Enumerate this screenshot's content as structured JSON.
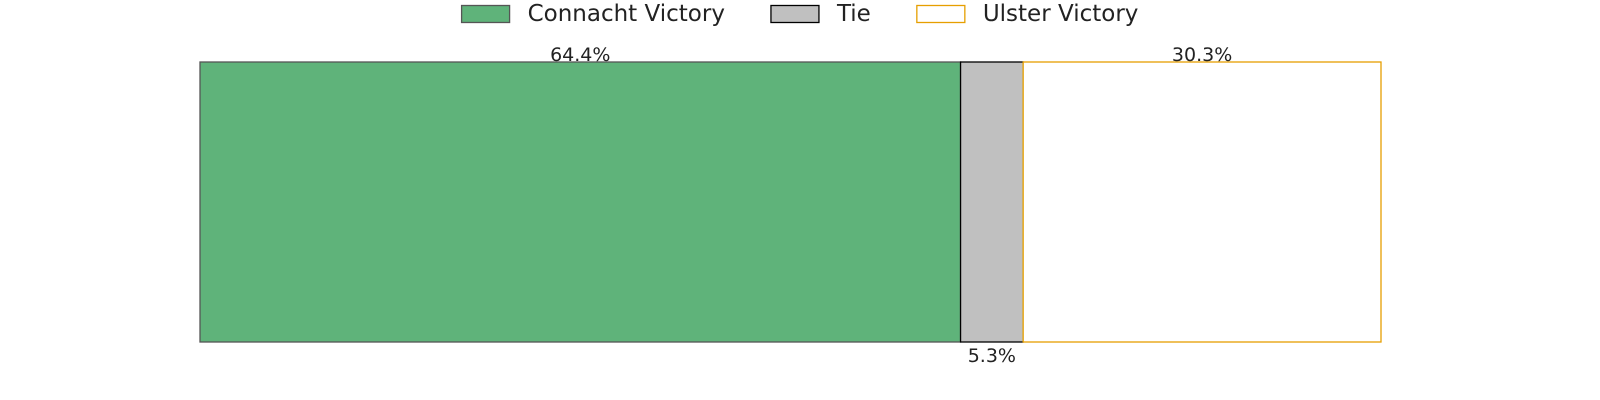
{
  "chart_data": {
    "type": "bar",
    "orientation": "horizontal",
    "stacked": true,
    "categories": [
      ""
    ],
    "series": [
      {
        "name": "Connacht Victory",
        "values": [
          64.4
        ],
        "label": "64.4%",
        "label_position": "top",
        "fill": "#5fb37a",
        "stroke": "#555555"
      },
      {
        "name": "Tie",
        "values": [
          5.3
        ],
        "label": "5.3%",
        "label_position": "bottom",
        "fill": "#c0c0c0",
        "stroke": "#000000"
      },
      {
        "name": "Ulster Victory",
        "values": [
          30.3
        ],
        "label": "30.3%",
        "label_position": "top",
        "fill": "#ffffff",
        "stroke": "#e69f00"
      }
    ],
    "xlim": [
      0,
      100
    ],
    "title": "",
    "xlabel": "",
    "ylabel": "",
    "grid": false,
    "legend": "top-center",
    "unit": "%"
  }
}
